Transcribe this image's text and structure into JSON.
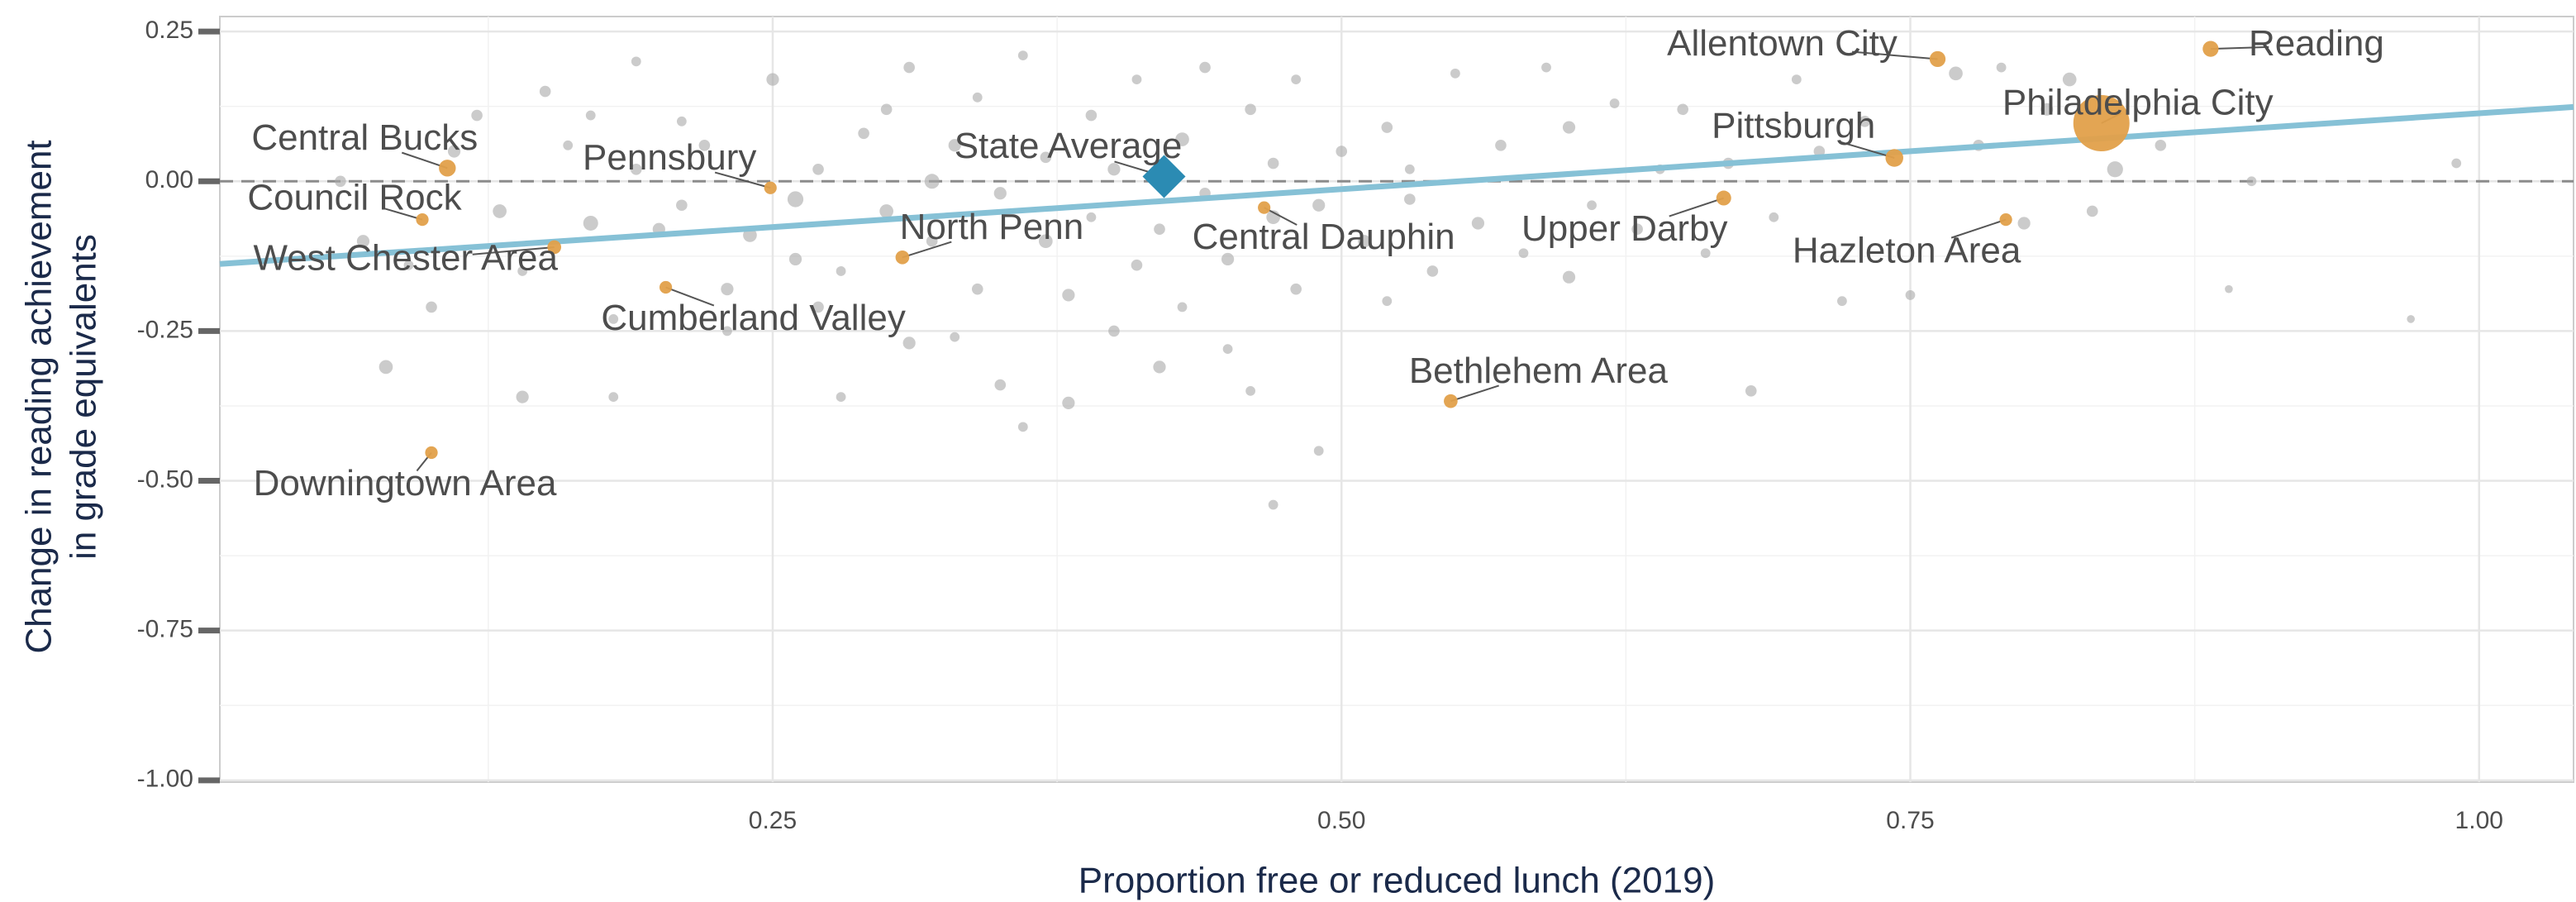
{
  "chart_data": {
    "type": "scatter",
    "xlabel": "Proportion free or reduced lunch (2019)",
    "ylabel": [
      "Change in reading  achievement",
      "in grade equivalents"
    ],
    "xlim": [
      0.007,
      1.0415
    ],
    "ylim": [
      -1.003,
      0.275
    ],
    "xticks": [
      {
        "value": 0.25,
        "label": "0.25"
      },
      {
        "value": 0.5,
        "label": "0.50"
      },
      {
        "value": 0.75,
        "label": "0.75"
      },
      {
        "value": 1.0,
        "label": "1.00"
      }
    ],
    "yticks": [
      {
        "value": -1.0,
        "label": "-1.00"
      },
      {
        "value": -0.75,
        "label": "-0.75"
      },
      {
        "value": -0.5,
        "label": "-0.50"
      },
      {
        "value": -0.25,
        "label": "-0.25"
      },
      {
        "value": 0,
        "label": "0.00"
      },
      {
        "value": 0.25,
        "label": "0.25"
      }
    ],
    "grid": true,
    "hline": 0,
    "trend": {
      "x": [
        0.007,
        1.0415
      ],
      "y": [
        -0.138,
        0.124
      ],
      "color": "#86c1d6"
    },
    "series": [
      {
        "color": "#a8a8a8",
        "x": [
          0.06,
          0.07,
          0.08,
          0.09,
          0.1,
          0.11,
          0.12,
          0.13,
          0.14,
          0.14,
          0.15,
          0.16,
          0.17,
          0.17,
          0.18,
          0.18,
          0.19,
          0.19,
          0.2,
          0.21,
          0.21,
          0.22,
          0.23,
          0.23,
          0.24,
          0.25,
          0.26,
          0.26,
          0.27,
          0.27,
          0.28,
          0.28,
          0.29,
          0.3,
          0.3,
          0.31,
          0.31,
          0.32,
          0.32,
          0.33,
          0.33,
          0.34,
          0.34,
          0.35,
          0.35,
          0.36,
          0.36,
          0.37,
          0.37,
          0.38,
          0.38,
          0.39,
          0.39,
          0.4,
          0.4,
          0.41,
          0.41,
          0.42,
          0.42,
          0.43,
          0.43,
          0.44,
          0.44,
          0.45,
          0.45,
          0.46,
          0.46,
          0.47,
          0.47,
          0.48,
          0.48,
          0.49,
          0.49,
          0.5,
          0.51,
          0.52,
          0.52,
          0.53,
          0.54,
          0.55,
          0.56,
          0.57,
          0.58,
          0.59,
          0.6,
          0.6,
          0.61,
          0.62,
          0.63,
          0.64,
          0.65,
          0.66,
          0.67,
          0.68,
          0.69,
          0.7,
          0.71,
          0.72,
          0.73,
          0.75,
          0.77,
          0.78,
          0.79,
          0.8,
          0.81,
          0.82,
          0.83,
          0.84,
          0.86,
          0.89,
          0.9,
          0.97,
          0.99,
          0.53,
          0.47
        ],
        "values": [
          0.0,
          -0.1,
          -0.31,
          -0.14,
          -0.21,
          0.05,
          0.11,
          -0.05,
          -0.15,
          -0.36,
          0.15,
          0.06,
          -0.07,
          0.11,
          -0.23,
          -0.36,
          0.02,
          0.2,
          -0.08,
          0.1,
          -0.04,
          0.06,
          -0.18,
          -0.25,
          -0.09,
          0.17,
          -0.03,
          -0.13,
          0.02,
          -0.21,
          -0.15,
          -0.36,
          0.08,
          -0.05,
          0.12,
          0.19,
          -0.27,
          0.0,
          -0.1,
          -0.26,
          0.06,
          -0.18,
          0.14,
          -0.02,
          -0.34,
          0.21,
          -0.41,
          -0.1,
          0.04,
          -0.19,
          -0.37,
          0.11,
          -0.06,
          -0.25,
          0.02,
          -0.14,
          0.17,
          -0.31,
          -0.08,
          0.07,
          -0.21,
          -0.02,
          0.19,
          -0.13,
          -0.28,
          0.12,
          -0.35,
          -0.06,
          0.03,
          -0.18,
          0.17,
          -0.45,
          -0.04,
          0.05,
          -0.1,
          -0.2,
          0.09,
          -0.03,
          -0.15,
          0.18,
          -0.07,
          0.06,
          -0.12,
          0.19,
          0.09,
          -0.16,
          -0.04,
          0.13,
          -0.08,
          0.02,
          0.12,
          -0.12,
          0.03,
          -0.35,
          -0.06,
          0.17,
          0.05,
          -0.2,
          0.1,
          -0.19,
          0.18,
          0.06,
          0.19,
          -0.07,
          0.12,
          0.17,
          -0.05,
          0.02,
          0.06,
          -0.18,
          0.0,
          -0.23,
          0.03,
          0.02,
          -0.54
        ],
        "sizes": [
          4,
          5,
          6,
          3,
          4,
          5,
          4,
          6,
          3,
          5,
          4,
          3,
          7,
          3,
          3,
          3,
          4,
          3,
          5,
          3,
          4,
          4,
          5,
          3,
          6,
          5,
          8,
          5,
          4,
          4,
          3,
          3,
          4,
          6,
          4,
          4,
          5,
          7,
          4,
          3,
          5,
          4,
          3,
          5,
          4,
          3,
          3,
          6,
          4,
          5,
          5,
          4,
          3,
          4,
          5,
          4,
          3,
          5,
          4,
          6,
          3,
          4,
          4,
          5,
          3,
          4,
          3,
          6,
          4,
          4,
          3,
          3,
          5,
          4,
          5,
          3,
          4,
          4,
          4,
          3,
          5,
          4,
          3,
          3,
          5,
          5,
          3,
          3,
          4,
          3,
          4,
          3,
          4,
          4,
          3,
          3,
          4,
          3,
          4,
          3,
          6,
          4,
          3,
          5,
          5,
          6,
          4,
          8,
          4,
          2,
          3,
          2,
          3,
          3,
          3
        ]
      },
      {
        "color": "#e2a04a",
        "labels": [
          "Central Bucks",
          "Council Rock",
          "West Chester Area",
          "Pennsbury",
          "Cumberland Valley",
          "North Penn",
          "Central Dauphin",
          "Bethlehem Area",
          "Downingtown Area",
          "Upper Darby",
          "Pittsburgh",
          "Allentown City",
          "Hazleton Area",
          "Philadelphia City",
          "Reading"
        ],
        "x": [
          0.107,
          0.096,
          0.154,
          0.249,
          0.203,
          0.307,
          0.466,
          0.548,
          0.1,
          0.668,
          0.743,
          0.762,
          0.792,
          0.834,
          0.882
        ],
        "values": [
          0.022,
          -0.064,
          -0.11,
          -0.011,
          -0.177,
          -0.127,
          -0.044,
          -0.367,
          -0.453,
          -0.028,
          0.039,
          0.204,
          -0.064,
          0.097,
          0.221
        ],
        "sizes": [
          9,
          5,
          6,
          5,
          5,
          6,
          5,
          6,
          5,
          7,
          10,
          8,
          5,
          100,
          8
        ]
      },
      {
        "color": "#2b8bb3",
        "marker": "diamond",
        "labels": [
          "State Average"
        ],
        "x": [
          0.422
        ],
        "values": [
          0.008
        ]
      }
    ]
  }
}
